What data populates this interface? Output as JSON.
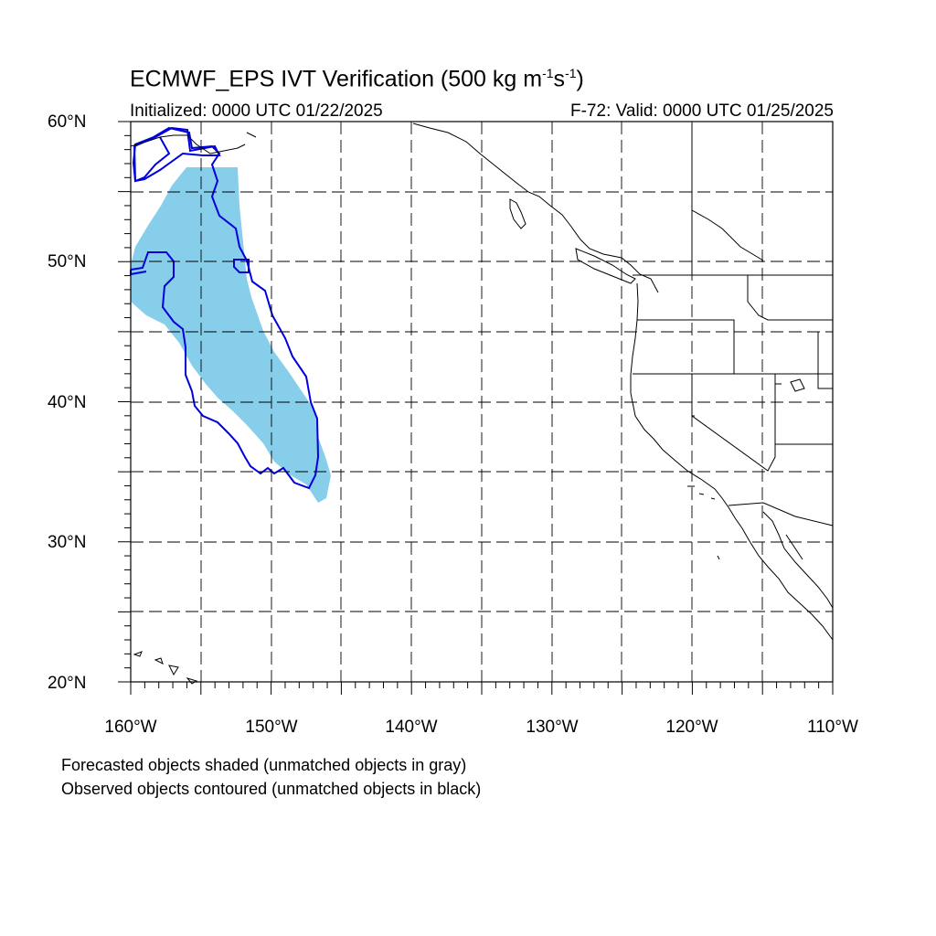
{
  "title": {
    "prefix": "ECMWF_EPS IVT Verification (500 kg m",
    "exp1": "-1",
    "mid": "s",
    "exp2": "-1",
    "suffix": ")"
  },
  "subtitle_left": "Initialized: 0000 UTC 01/22/2025",
  "subtitle_right": "F-72: Valid: 0000 UTC 01/25/2025",
  "lat_labels": [
    "60°N",
    "50°N",
    "40°N",
    "30°N",
    "20°N"
  ],
  "lon_labels": [
    "160°W",
    "150°W",
    "140°W",
    "130°W",
    "120°W",
    "110°W"
  ],
  "footnotes": [
    "Forecasted objects shaded (unmatched objects in gray)",
    "Observed objects contoured (unmatched objects in black)"
  ],
  "colors": {
    "forecast_fill": "#87ceeb",
    "observed_contour": "#0000dd",
    "grid": "#000000",
    "coastline": "#000000"
  },
  "map": {
    "lon_range": [
      -160,
      -110
    ],
    "lat_range": [
      20,
      60
    ],
    "grid_lon": [
      -155,
      -150,
      -145,
      -140,
      -135,
      -130,
      -125,
      -120,
      -115
    ],
    "grid_lat": [
      25,
      30,
      35,
      40,
      45,
      50,
      55
    ],
    "grid_style": "dashed"
  }
}
